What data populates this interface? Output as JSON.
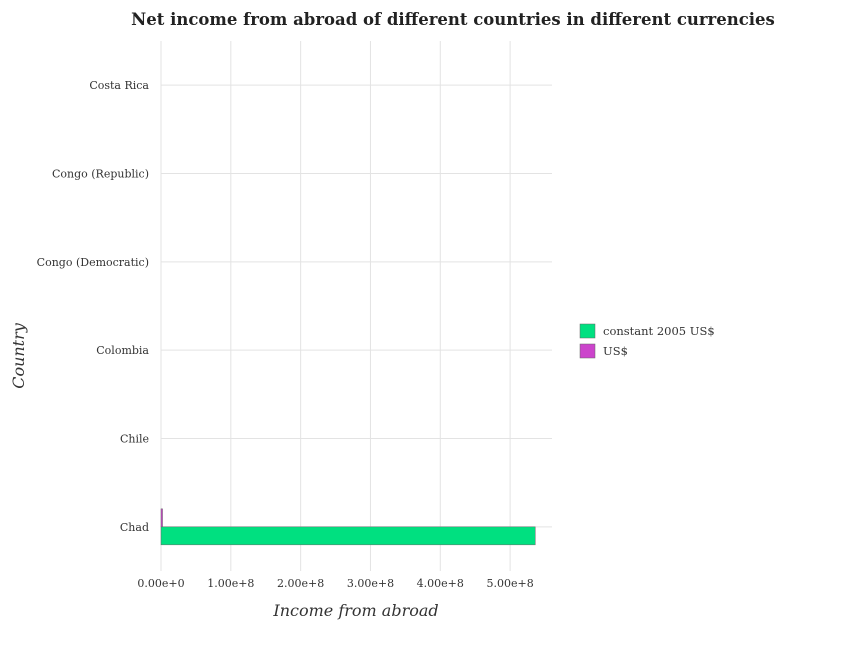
{
  "chart_data": {
    "type": "bar",
    "orientation": "horizontal",
    "title": "Net income from abroad of different countries in different currencies",
    "xlabel": "Income from abroad",
    "ylabel": "Country",
    "categories": [
      "Chad",
      "Chile",
      "Colombia",
      "Congo (Democratic)",
      "Congo (Republic)",
      "Costa Rica"
    ],
    "series": [
      {
        "name": "constant 2005 US$",
        "color": "#00e080",
        "values": [
          536000000,
          0,
          0,
          0,
          0,
          0
        ]
      },
      {
        "name": "US$",
        "color": "#cc44cc",
        "values": [
          2200000,
          0,
          0,
          0,
          0,
          0
        ]
      }
    ],
    "xlim": [
      0,
      560000000
    ],
    "xticks": [
      0,
      100000000,
      200000000,
      300000000,
      400000000,
      500000000
    ],
    "xtick_labels": [
      "0.00e+0",
      "1.00e+8",
      "2.00e+8",
      "3.00e+8",
      "4.00e+8",
      "5.00e+8"
    ],
    "grid": true,
    "legend_position": "right"
  }
}
